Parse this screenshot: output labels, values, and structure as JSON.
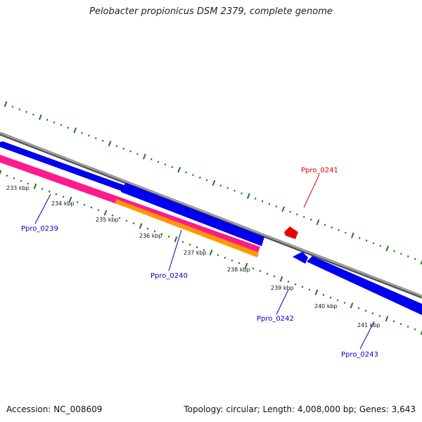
{
  "title": "Pelobacter propionicus DSM 2379, complete genome",
  "accession": "Accession: NC_008609",
  "summary": "Topology: circular; Length: 4,008,000 bp; Genes: 3,643",
  "colors": {
    "backbone": "#888888",
    "forward_gene": "#0000ff",
    "reverse_gene": "#ff0000",
    "rrna": "#ff1a8c",
    "orange_feature": "#ff9900",
    "tick": "#1a7a1a",
    "forward_label": "#0000cc",
    "reverse_label": "#dd0000"
  },
  "kbp_labels": [
    "233 kbp",
    "234 kbp",
    "235 kbp",
    "236 kbp",
    "237 kbp",
    "238 kbp",
    "239 kbp",
    "240 kbp",
    "241 kbp"
  ],
  "gene_labels": [
    {
      "id": "g0239",
      "text": "Ppro_0239",
      "strand": "forward"
    },
    {
      "id": "g0240",
      "text": "Ppro_0240",
      "strand": "forward"
    },
    {
      "id": "g0241",
      "text": "Ppro_0241",
      "strand": "reverse"
    },
    {
      "id": "g0242",
      "text": "Ppro_0242",
      "strand": "forward"
    },
    {
      "id": "g0243",
      "text": "Ppro_0243",
      "strand": "forward"
    }
  ]
}
